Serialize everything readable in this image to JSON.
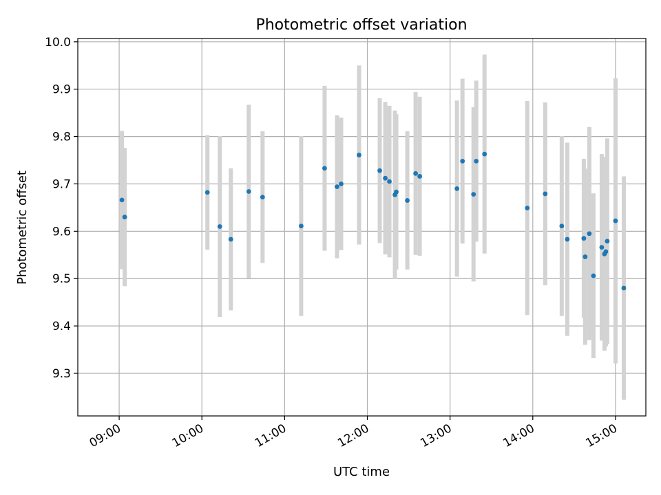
{
  "chart_data": {
    "type": "scatter",
    "title": "Photometric offset variation",
    "xlabel": "UTC time",
    "ylabel": "Photometric offset",
    "xlim": [
      "08:30",
      "15:22"
    ],
    "ylim": [
      9.21,
      10.007
    ],
    "grid": true,
    "x_ticks": [
      "09:00",
      "10:00",
      "11:00",
      "12:00",
      "13:00",
      "14:00",
      "15:00"
    ],
    "y_ticks": [
      9.3,
      9.4,
      9.5,
      9.6,
      9.7,
      9.8,
      9.9,
      10.0
    ],
    "point_color": "#1f77b4",
    "errorbar_color": "#d3d3d3",
    "points": [
      {
        "time": "09:02",
        "y": 9.666,
        "err": 0.146
      },
      {
        "time": "09:04",
        "y": 9.63,
        "err": 0.146
      },
      {
        "time": "10:04",
        "y": 9.682,
        "err": 0.121
      },
      {
        "time": "10:13",
        "y": 9.61,
        "err": 0.191
      },
      {
        "time": "10:21",
        "y": 9.583,
        "err": 0.15
      },
      {
        "time": "10:34",
        "y": 9.684,
        "err": 0.183
      },
      {
        "time": "10:44",
        "y": 9.672,
        "err": 0.139
      },
      {
        "time": "11:12",
        "y": 9.611,
        "err": 0.19
      },
      {
        "time": "11:29",
        "y": 9.733,
        "err": 0.174
      },
      {
        "time": "11:38",
        "y": 9.694,
        "err": 0.151
      },
      {
        "time": "11:41",
        "y": 9.7,
        "err": 0.14
      },
      {
        "time": "11:54",
        "y": 9.761,
        "err": 0.189
      },
      {
        "time": "12:09",
        "y": 9.728,
        "err": 0.153
      },
      {
        "time": "12:13",
        "y": 9.712,
        "err": 0.161
      },
      {
        "time": "12:16",
        "y": 9.705,
        "err": 0.16
      },
      {
        "time": "12:20",
        "y": 9.677,
        "err": 0.178
      },
      {
        "time": "12:21",
        "y": 9.683,
        "err": 0.164
      },
      {
        "time": "12:29",
        "y": 9.665,
        "err": 0.146
      },
      {
        "time": "12:35",
        "y": 9.722,
        "err": 0.172
      },
      {
        "time": "12:38",
        "y": 9.716,
        "err": 0.168
      },
      {
        "time": "13:05",
        "y": 9.69,
        "err": 0.186
      },
      {
        "time": "13:09",
        "y": 9.748,
        "err": 0.174
      },
      {
        "time": "13:17",
        "y": 9.678,
        "err": 0.184
      },
      {
        "time": "13:19",
        "y": 9.748,
        "err": 0.17
      },
      {
        "time": "13:25",
        "y": 9.763,
        "err": 0.21
      },
      {
        "time": "13:56",
        "y": 9.649,
        "err": 0.226
      },
      {
        "time": "14:09",
        "y": 9.679,
        "err": 0.193
      },
      {
        "time": "14:21",
        "y": 9.611,
        "err": 0.19
      },
      {
        "time": "14:25",
        "y": 9.583,
        "err": 0.204
      },
      {
        "time": "14:37",
        "y": 9.585,
        "err": 0.168
      },
      {
        "time": "14:38",
        "y": 9.546,
        "err": 0.186
      },
      {
        "time": "14:41",
        "y": 9.595,
        "err": 0.225
      },
      {
        "time": "14:44",
        "y": 9.506,
        "err": 0.174
      },
      {
        "time": "14:50",
        "y": 9.566,
        "err": 0.197
      },
      {
        "time": "14:52",
        "y": 9.552,
        "err": 0.204
      },
      {
        "time": "14:53",
        "y": 9.557,
        "err": 0.2
      },
      {
        "time": "14:54",
        "y": 9.579,
        "err": 0.217
      },
      {
        "time": "15:00",
        "y": 9.622,
        "err": 0.301
      },
      {
        "time": "15:06",
        "y": 9.48,
        "err": 0.236
      }
    ]
  }
}
